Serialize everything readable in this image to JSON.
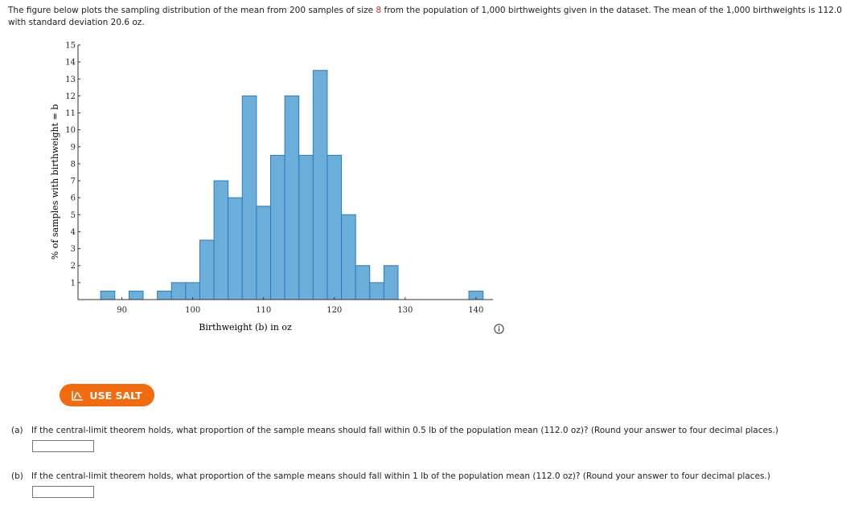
{
  "intro": {
    "part1": "The figure below plots the sampling distribution of the mean from 200 samples of size ",
    "sample_size": "8",
    "part2": " from the population of 1,000 birthweights given in the dataset. The mean of the 1,000 birthweights is 112.0",
    "line2": "with standard deviation 20.6 oz."
  },
  "chart_data": {
    "type": "bar",
    "bin_width": 2,
    "bin_centers": [
      88,
      92,
      96,
      98,
      100,
      102,
      104,
      106,
      108,
      110,
      112,
      114,
      116,
      118,
      120,
      122,
      124,
      126,
      128,
      140
    ],
    "values": [
      0.5,
      0.5,
      0.5,
      1,
      1,
      3.5,
      7,
      6,
      12,
      5.5,
      8.5,
      12,
      8.5,
      13.5,
      8.5,
      5,
      2,
      1,
      2,
      0.5
    ],
    "xlabel": "Birthweight (b) in oz",
    "ylabel": "% of samples with birthweight = b",
    "xticks": [
      90,
      100,
      110,
      120,
      130,
      140
    ],
    "yticks": [
      1,
      2,
      3,
      4,
      5,
      6,
      7,
      8,
      9,
      10,
      11,
      12,
      13,
      14,
      15
    ],
    "xlim": [
      83.8,
      142.4
    ],
    "ylim": [
      0,
      15
    ],
    "bar_color": "#6aaed9",
    "bar_edge": "#2b7cbf"
  },
  "salt": {
    "label": "USE SALT",
    "color": "#f26b0f"
  },
  "questions": [
    {
      "label": "(a)",
      "text": "If the central-limit theorem holds, what proportion of the sample means should fall within 0.5 lb of the population mean (112.0 oz)? (Round your answer to four decimal places.)",
      "value": ""
    },
    {
      "label": "(b)",
      "text": "If the central-limit theorem holds, what proportion of the sample means should fall within 1 lb of the population mean (112.0 oz)? (Round your answer to four decimal places.)",
      "value": ""
    }
  ]
}
